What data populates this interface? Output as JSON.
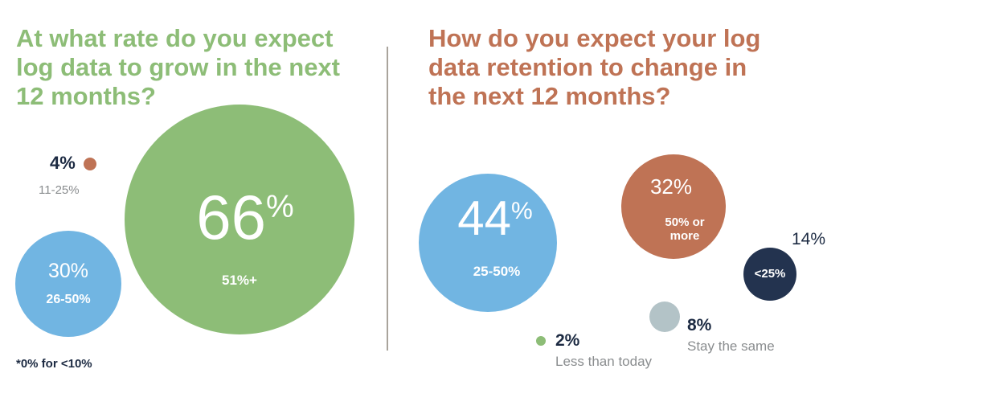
{
  "colors": {
    "green": "#8dbd77",
    "blue": "#71b5e2",
    "rust": "#bf7355",
    "navy": "#23334f",
    "gray": "#b3c3c7",
    "divider": "#a9a49c",
    "muted_text": "#8a8d8f",
    "dark_text": "#1c2a42"
  },
  "chart_data": [
    {
      "type": "bubble",
      "title": "At what rate do you expect log data to grow in the next 12 months?",
      "unit": "%",
      "categories": [
        "51%+",
        "26-50%",
        "11-25%"
      ],
      "values": [
        66,
        30,
        4
      ],
      "value_labels": [
        "66",
        "30%",
        "4%"
      ],
      "footnote": "*0% for <10%"
    },
    {
      "type": "bubble",
      "title": "How do you expect your log data retention to change in the next 12 months?",
      "unit": "%",
      "categories": [
        "25-50%",
        "50% or more",
        "<25%",
        "Stay the same",
        "Less than today"
      ],
      "values": [
        44,
        32,
        14,
        8,
        2
      ],
      "value_labels": [
        "44",
        "32%",
        "14%",
        "8%",
        "2%"
      ]
    }
  ]
}
